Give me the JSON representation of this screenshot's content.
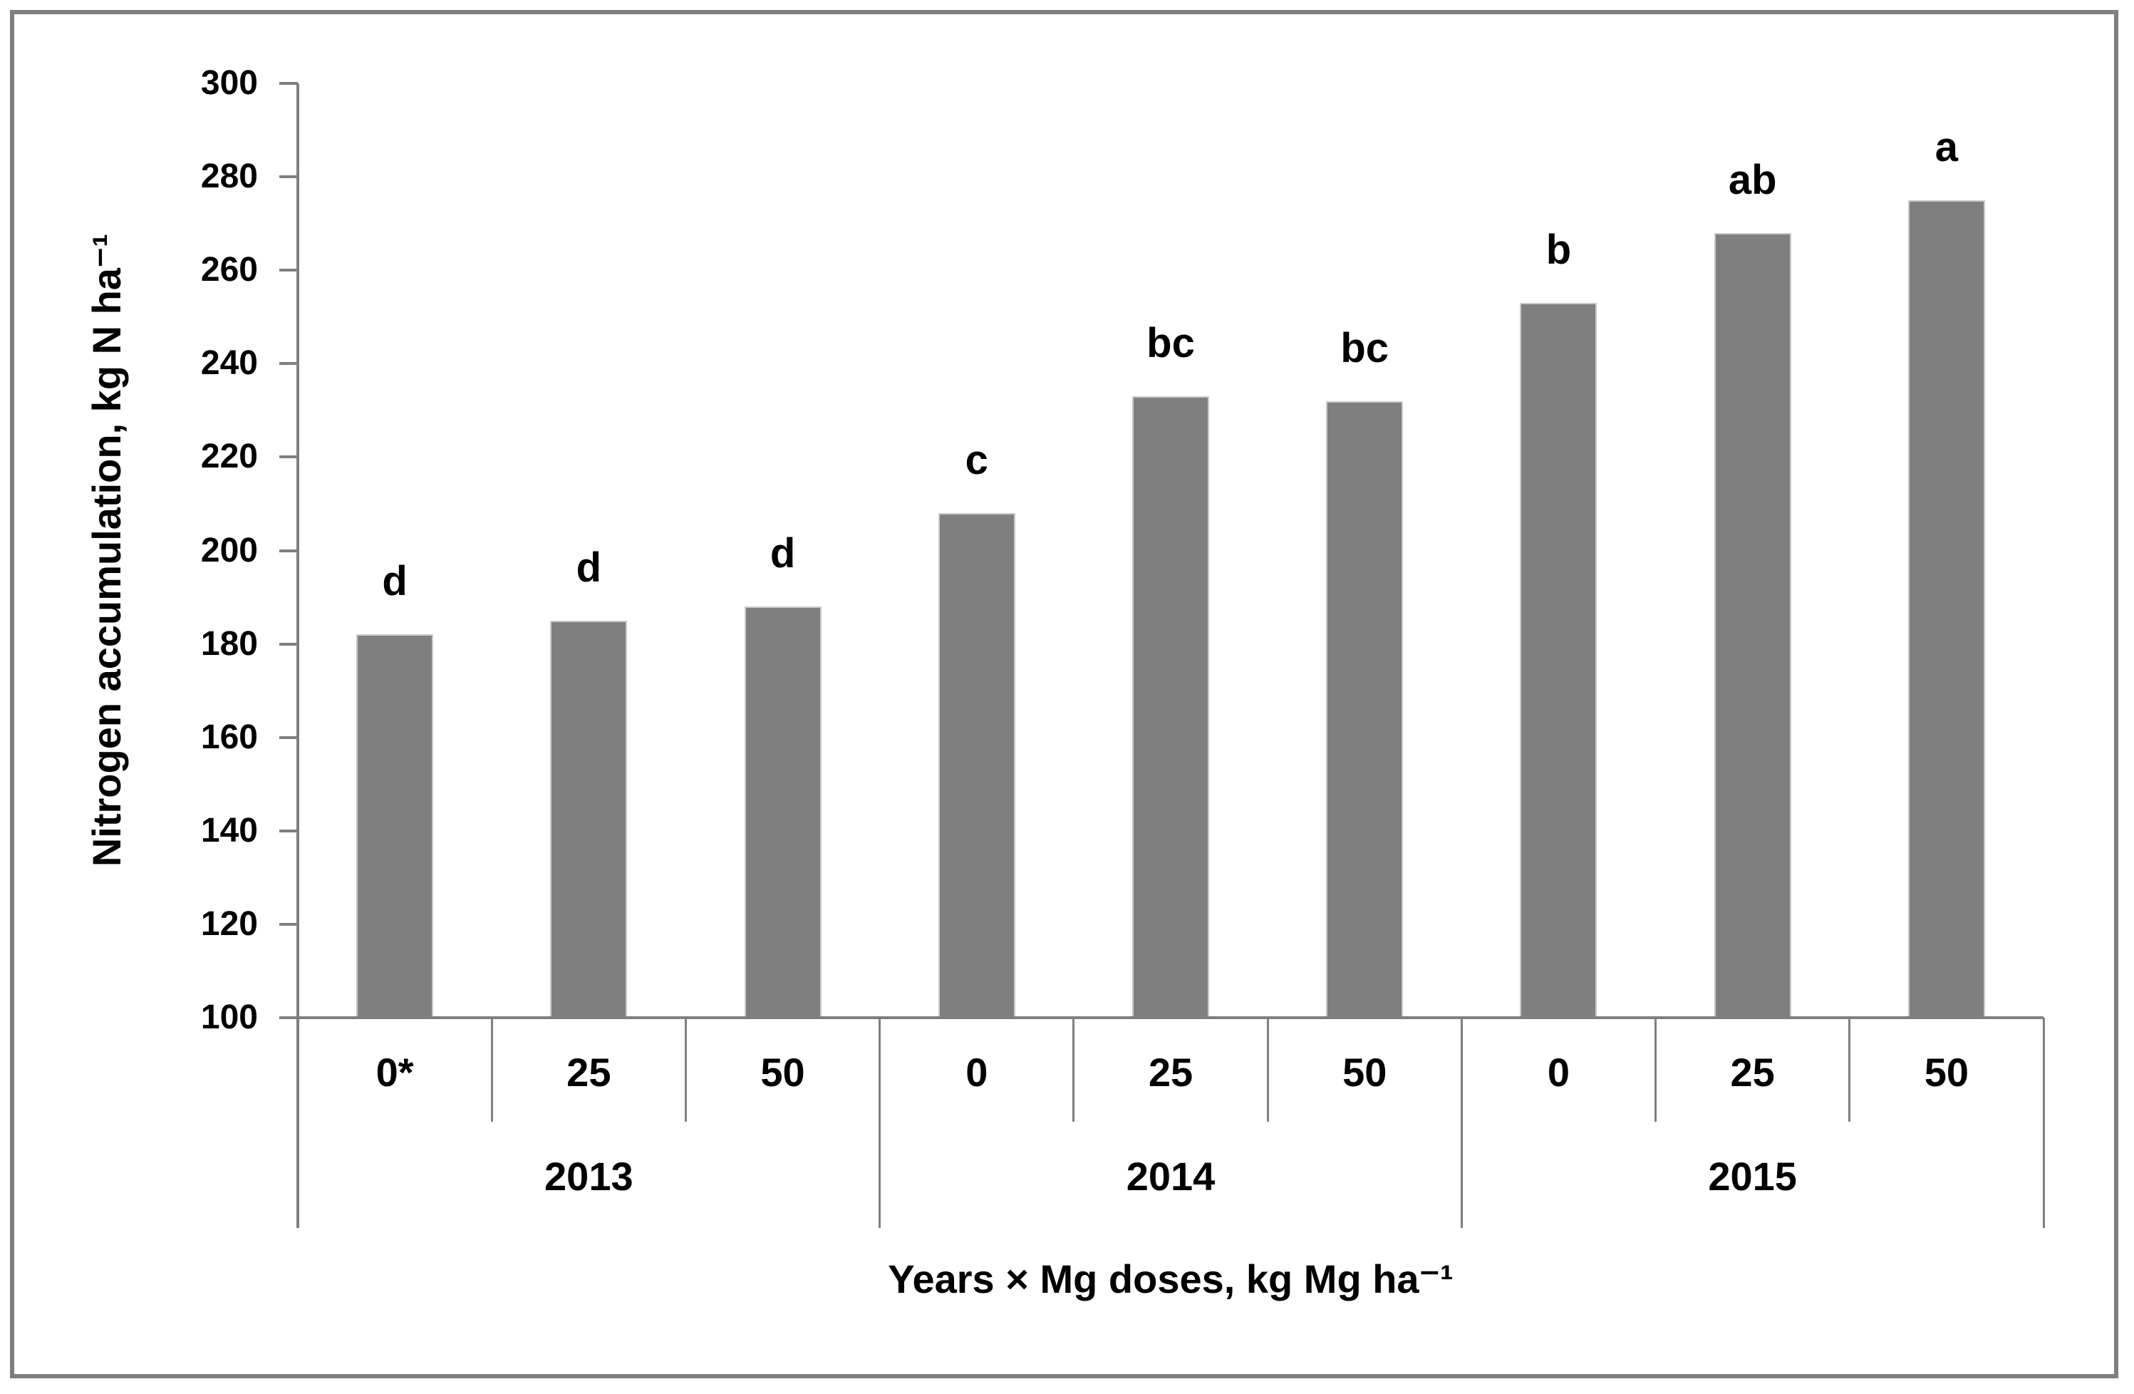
{
  "figure": {
    "border_color": "#7f7f7f",
    "background": "#ffffff"
  },
  "chart_data": {
    "type": "bar",
    "title": "",
    "ylabel": "Nitrogen accumulation, kg N ha⁻¹",
    "xlabel": "Years × Mg doses, kg Mg ha⁻¹",
    "ylim": [
      100,
      300
    ],
    "yticks": [
      100,
      120,
      140,
      160,
      180,
      200,
      220,
      240,
      260,
      280,
      300
    ],
    "grid": false,
    "legend_position": "none",
    "bar_color": "#7f7f7f",
    "line_color": "#7f7f7f",
    "groups": [
      {
        "year": "2013",
        "doses": [
          "0*",
          "25",
          "50"
        ],
        "values": [
          182,
          185,
          188
        ],
        "letters": [
          "d",
          "d",
          "d"
        ]
      },
      {
        "year": "2014",
        "doses": [
          "0",
          "25",
          "50"
        ],
        "values": [
          208,
          233,
          232
        ],
        "letters": [
          "c",
          "bc",
          "bc"
        ]
      },
      {
        "year": "2015",
        "doses": [
          "0",
          "25",
          "50"
        ],
        "values": [
          253,
          268,
          275
        ],
        "letters": [
          "b",
          "ab",
          "a"
        ]
      }
    ]
  }
}
